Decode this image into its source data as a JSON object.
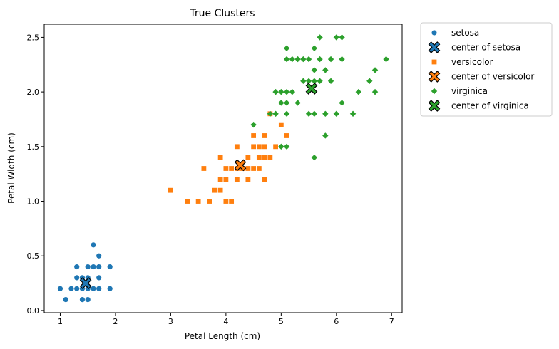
{
  "chart_data": {
    "type": "scatter",
    "title": "True Clusters",
    "xlabel": "Petal Length (cm)",
    "ylabel": "Petal Width (cm)",
    "xlim": [
      0.71,
      7.19
    ],
    "ylim": [
      -0.02,
      2.62
    ],
    "xticks": [
      "1",
      "2",
      "3",
      "4",
      "5",
      "6",
      "7"
    ],
    "yticks": [
      "0.0",
      "0.5",
      "1.0",
      "1.5",
      "2.0",
      "2.5"
    ],
    "grid": false,
    "legend_position": "outside-right-top",
    "series": [
      {
        "name": "setosa",
        "marker": "circle",
        "color": "#1f77b4",
        "points": [
          [
            1.0,
            0.2
          ],
          [
            1.1,
            0.1
          ],
          [
            1.2,
            0.2
          ],
          [
            1.3,
            0.2
          ],
          [
            1.3,
            0.3
          ],
          [
            1.3,
            0.4
          ],
          [
            1.4,
            0.1
          ],
          [
            1.4,
            0.2
          ],
          [
            1.4,
            0.3
          ],
          [
            1.5,
            0.1
          ],
          [
            1.5,
            0.2
          ],
          [
            1.5,
            0.3
          ],
          [
            1.5,
            0.4
          ],
          [
            1.6,
            0.2
          ],
          [
            1.6,
            0.4
          ],
          [
            1.6,
            0.6
          ],
          [
            1.7,
            0.2
          ],
          [
            1.7,
            0.3
          ],
          [
            1.7,
            0.4
          ],
          [
            1.7,
            0.5
          ],
          [
            1.9,
            0.2
          ],
          [
            1.9,
            0.4
          ]
        ]
      },
      {
        "name": "versicolor",
        "marker": "square",
        "color": "#ff7f0e",
        "points": [
          [
            3.0,
            1.1
          ],
          [
            3.3,
            1.0
          ],
          [
            3.5,
            1.0
          ],
          [
            3.6,
            1.3
          ],
          [
            3.7,
            1.0
          ],
          [
            3.8,
            1.1
          ],
          [
            3.9,
            1.1
          ],
          [
            3.9,
            1.2
          ],
          [
            3.9,
            1.4
          ],
          [
            4.0,
            1.0
          ],
          [
            4.0,
            1.2
          ],
          [
            4.0,
            1.3
          ],
          [
            4.1,
            1.0
          ],
          [
            4.1,
            1.3
          ],
          [
            4.2,
            1.2
          ],
          [
            4.2,
            1.3
          ],
          [
            4.2,
            1.5
          ],
          [
            4.3,
            1.3
          ],
          [
            4.4,
            1.2
          ],
          [
            4.4,
            1.3
          ],
          [
            4.4,
            1.4
          ],
          [
            4.5,
            1.3
          ],
          [
            4.5,
            1.5
          ],
          [
            4.5,
            1.6
          ],
          [
            4.6,
            1.3
          ],
          [
            4.6,
            1.4
          ],
          [
            4.6,
            1.5
          ],
          [
            4.7,
            1.2
          ],
          [
            4.7,
            1.4
          ],
          [
            4.7,
            1.5
          ],
          [
            4.7,
            1.6
          ],
          [
            4.8,
            1.4
          ],
          [
            4.8,
            1.8
          ],
          [
            4.9,
            1.5
          ],
          [
            5.0,
            1.7
          ],
          [
            5.1,
            1.6
          ]
        ]
      },
      {
        "name": "virginica",
        "marker": "diamond",
        "color": "#2ca02c",
        "points": [
          [
            4.5,
            1.7
          ],
          [
            4.8,
            1.8
          ],
          [
            4.9,
            1.8
          ],
          [
            4.9,
            2.0
          ],
          [
            5.0,
            1.5
          ],
          [
            5.0,
            1.9
          ],
          [
            5.0,
            2.0
          ],
          [
            5.1,
            1.5
          ],
          [
            5.1,
            1.8
          ],
          [
            5.1,
            1.9
          ],
          [
            5.1,
            2.0
          ],
          [
            5.1,
            2.3
          ],
          [
            5.1,
            2.4
          ],
          [
            5.2,
            2.0
          ],
          [
            5.2,
            2.3
          ],
          [
            5.3,
            1.9
          ],
          [
            5.3,
            2.3
          ],
          [
            5.4,
            2.1
          ],
          [
            5.4,
            2.3
          ],
          [
            5.5,
            1.8
          ],
          [
            5.5,
            2.1
          ],
          [
            5.5,
            2.3
          ],
          [
            5.6,
            1.4
          ],
          [
            5.6,
            1.8
          ],
          [
            5.6,
            2.1
          ],
          [
            5.6,
            2.2
          ],
          [
            5.6,
            2.4
          ],
          [
            5.7,
            2.1
          ],
          [
            5.7,
            2.3
          ],
          [
            5.7,
            2.5
          ],
          [
            5.8,
            1.6
          ],
          [
            5.8,
            1.8
          ],
          [
            5.8,
            2.2
          ],
          [
            5.9,
            2.1
          ],
          [
            5.9,
            2.3
          ],
          [
            6.0,
            1.8
          ],
          [
            6.0,
            2.5
          ],
          [
            6.1,
            1.9
          ],
          [
            6.1,
            2.3
          ],
          [
            6.1,
            2.5
          ],
          [
            6.3,
            1.8
          ],
          [
            6.4,
            2.0
          ],
          [
            6.6,
            2.1
          ],
          [
            6.7,
            2.0
          ],
          [
            6.7,
            2.2
          ],
          [
            6.9,
            2.3
          ]
        ]
      }
    ],
    "centers": [
      {
        "name": "center of setosa",
        "color": "#1f77b4",
        "x": 1.46,
        "y": 0.25
      },
      {
        "name": "center of versicolor",
        "color": "#ff7f0e",
        "x": 4.26,
        "y": 1.33
      },
      {
        "name": "center of virginica",
        "color": "#2ca02c",
        "x": 5.55,
        "y": 2.03
      }
    ],
    "legend": [
      {
        "label": "setosa",
        "marker": "circle",
        "color": "#1f77b4"
      },
      {
        "label": "center of setosa",
        "marker": "x",
        "color": "#1f77b4"
      },
      {
        "label": "versicolor",
        "marker": "square",
        "color": "#ff7f0e"
      },
      {
        "label": "center of versicolor",
        "marker": "x",
        "color": "#ff7f0e"
      },
      {
        "label": "virginica",
        "marker": "diamond",
        "color": "#2ca02c"
      },
      {
        "label": "center of virginica",
        "marker": "x",
        "color": "#2ca02c"
      }
    ]
  }
}
